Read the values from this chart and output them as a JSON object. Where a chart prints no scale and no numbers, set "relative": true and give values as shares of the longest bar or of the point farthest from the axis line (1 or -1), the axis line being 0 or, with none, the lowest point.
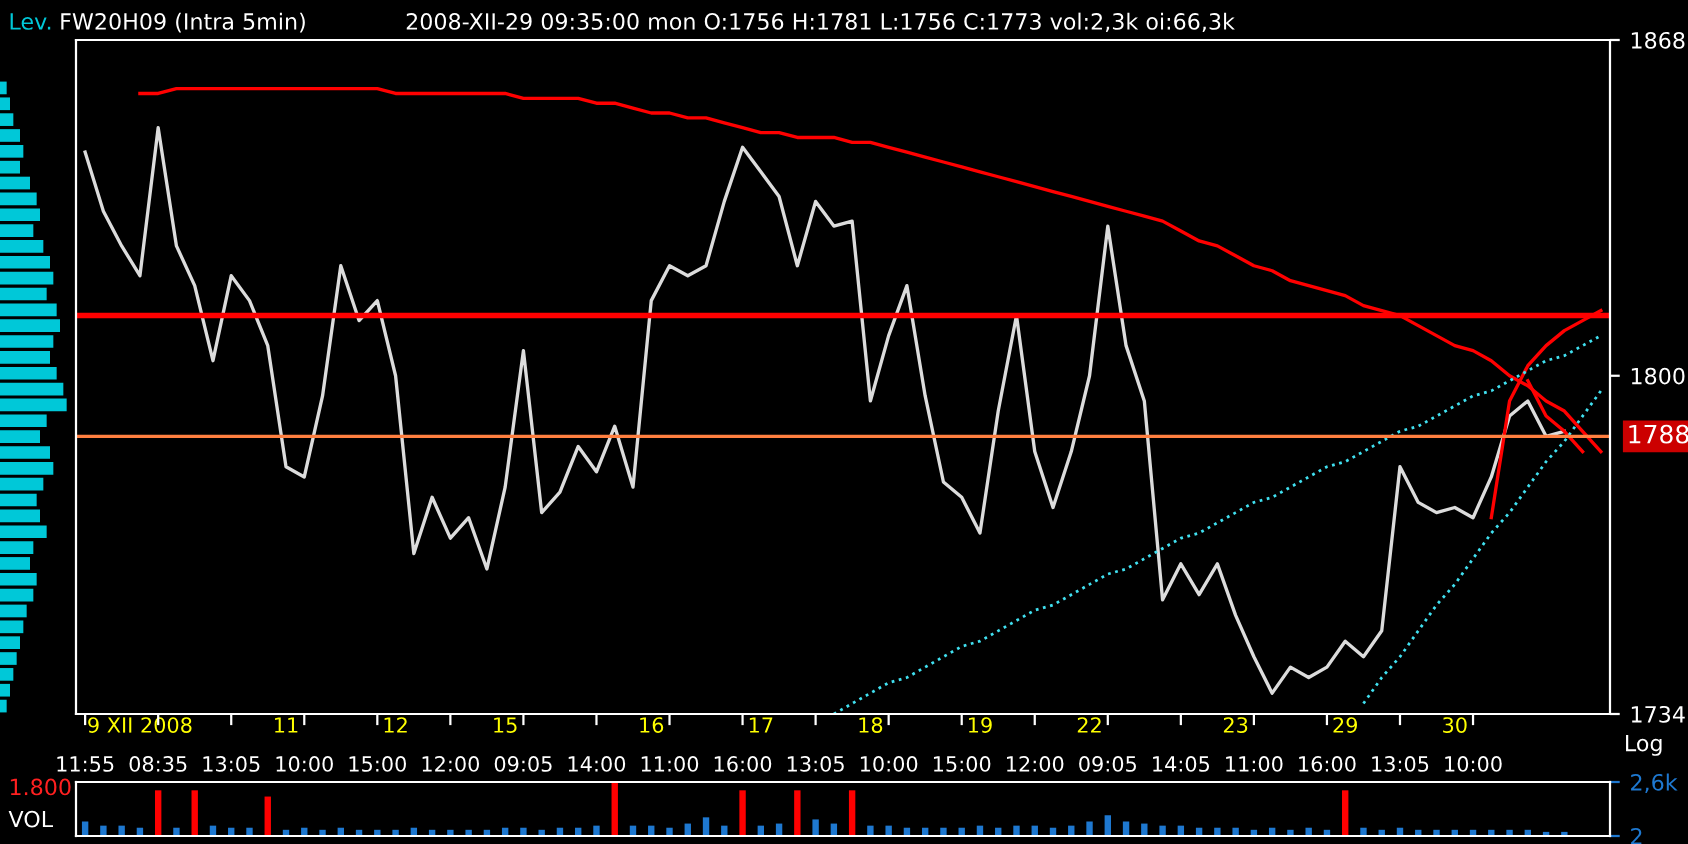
{
  "chart_data": [
    {
      "type": "bar",
      "title": "Lev.",
      "orientation": "horizontal",
      "relative": true,
      "color": "#00c8d8",
      "tick_labels": false,
      "categories": [
        null,
        null,
        null,
        null,
        null,
        null,
        null,
        null,
        null,
        null,
        null,
        null,
        null,
        null,
        null,
        null,
        null,
        null,
        null,
        null,
        null,
        null,
        null,
        null,
        null,
        null,
        null,
        null,
        null,
        null,
        null,
        null,
        null,
        null,
        null,
        null,
        null,
        null,
        null,
        null
      ],
      "values": [
        0.1,
        0.15,
        0.2,
        0.3,
        0.35,
        0.3,
        0.45,
        0.55,
        0.6,
        0.5,
        0.65,
        0.75,
        0.8,
        0.7,
        0.85,
        0.9,
        0.8,
        0.75,
        0.85,
        0.95,
        1,
        0.7,
        0.6,
        0.75,
        0.8,
        0.65,
        0.55,
        0.6,
        0.7,
        0.5,
        0.45,
        0.55,
        0.5,
        0.4,
        0.35,
        0.3,
        0.25,
        0.2,
        0.15,
        0.1
      ]
    },
    {
      "type": "line",
      "title": "FW20H09 (Intra 5min)",
      "subtitle": "2008-XII-29 09:35:00 mon O:1756 H:1781 L:1756 C:1773 vol:2,3k oi:66,3k",
      "log": "y",
      "ylim": [
        1734,
        1868
      ],
      "yticks": [
        1868,
        1800,
        1734
      ],
      "categories": [
        "11:55",
        null,
        null,
        "9 XII 2008",
        "08:35",
        null,
        null,
        null,
        "13:05",
        null,
        null,
        "11",
        "10:00",
        null,
        null,
        null,
        "15:00",
        "12",
        null,
        null,
        "12:00",
        null,
        null,
        "15",
        "09:05",
        null,
        null,
        null,
        "14:00",
        null,
        null,
        "16",
        "11:00",
        null,
        null,
        null,
        "16:00",
        "17",
        null,
        null,
        "13:05",
        null,
        null,
        "18",
        "10:00",
        null,
        null,
        null,
        "15:00",
        "19",
        null,
        null,
        "12:00",
        null,
        null,
        "22",
        "09:05",
        null,
        null,
        null,
        "14:05",
        null,
        null,
        "23",
        "11:00",
        null,
        null,
        null,
        "16:00",
        "29",
        null,
        null,
        "13:05",
        null,
        null,
        "30",
        "10:00",
        null,
        null,
        null,
        null,
        null,
        null,
        null
      ],
      "grid": false,
      "legend": false,
      "marker": "none",
      "annotations": [
        "Log"
      ],
      "ref_lines": [
        {
          "axis": "y",
          "value": 1812,
          "color": "#ff0000"
        },
        {
          "axis": "y",
          "value": 1788,
          "label": "1788",
          "color": "#ff7f40"
        }
      ],
      "series": [
        {
          "color": "#dcdcdc",
          "line_style": "solid",
          "values": [
            1845,
            1833,
            1826,
            1820,
            1850,
            1826,
            1818,
            1803,
            1820,
            1815,
            1806,
            1782,
            1780,
            1796,
            1822,
            1811,
            1815,
            1800,
            1765,
            1776,
            1768,
            1772,
            1762,
            1778,
            1805,
            1773,
            1777,
            1786,
            1781,
            1790,
            1778,
            1815,
            1822,
            1820,
            1822,
            1835,
            1846,
            1841,
            1836,
            1822,
            1835,
            1830,
            1831,
            1795,
            1808,
            1818,
            1796,
            1779,
            1776,
            1769,
            1793,
            1812,
            1785,
            1774,
            1785,
            1800,
            1830,
            1806,
            1795,
            1756,
            1763,
            1757,
            1763,
            1753,
            1745,
            1738,
            1743,
            1741,
            1743,
            1748,
            1745,
            1750,
            1782,
            1775,
            1773,
            1774,
            1772,
            1780,
            1792,
            1795,
            1788,
            1789,
            null,
            null
          ]
        },
        {
          "color": "#ff0000",
          "line_style": "solid",
          "values": [
            null,
            null,
            null,
            1857,
            1857,
            1858,
            1858,
            1858,
            1858,
            1858,
            1858,
            1858,
            1858,
            1858,
            1858,
            1858,
            1858,
            1857,
            1857,
            1857,
            1857,
            1857,
            1857,
            1857,
            1856,
            1856,
            1856,
            1856,
            1855,
            1855,
            1854,
            1853,
            1853,
            1852,
            1852,
            1851,
            1850,
            1849,
            1849,
            1848,
            1848,
            1848,
            1847,
            1847,
            1846,
            1845,
            1844,
            1843,
            1842,
            1841,
            1840,
            1839,
            1838,
            1837,
            1836,
            1835,
            1834,
            1833,
            1832,
            1831,
            1829,
            1827,
            1826,
            1824,
            1822,
            1821,
            1819,
            1818,
            1817,
            1816,
            1814,
            1813,
            1812,
            1810,
            1808,
            1806,
            1805,
            1803,
            1800,
            1798,
            1795,
            1793,
            1789,
            1785
          ]
        },
        {
          "color": "#ff0000",
          "line_style": "solid",
          "values": [
            null,
            null,
            null,
            null,
            null,
            null,
            null,
            null,
            null,
            null,
            null,
            null,
            null,
            null,
            null,
            null,
            null,
            null,
            null,
            null,
            null,
            null,
            null,
            null,
            null,
            null,
            null,
            null,
            null,
            null,
            null,
            null,
            null,
            null,
            null,
            null,
            null,
            null,
            null,
            null,
            null,
            null,
            null,
            null,
            null,
            null,
            null,
            null,
            null,
            null,
            null,
            null,
            null,
            null,
            null,
            null,
            null,
            null,
            null,
            null,
            null,
            null,
            null,
            null,
            null,
            null,
            null,
            null,
            null,
            null,
            null,
            null,
            null,
            null,
            null,
            null,
            null,
            1772,
            1795,
            1802,
            1806,
            1809,
            1811,
            1813
          ]
        },
        {
          "color": "#ff0000",
          "line_style": "solid",
          "values": [
            null,
            null,
            null,
            null,
            null,
            null,
            null,
            null,
            null,
            null,
            null,
            null,
            null,
            null,
            null,
            null,
            null,
            null,
            null,
            null,
            null,
            null,
            null,
            null,
            null,
            null,
            null,
            null,
            null,
            null,
            null,
            null,
            null,
            null,
            null,
            null,
            null,
            null,
            null,
            null,
            null,
            null,
            null,
            null,
            null,
            null,
            null,
            null,
            null,
            null,
            null,
            null,
            null,
            null,
            null,
            null,
            null,
            null,
            null,
            null,
            null,
            null,
            null,
            null,
            null,
            null,
            null,
            null,
            null,
            null,
            null,
            null,
            null,
            null,
            null,
            null,
            null,
            null,
            null,
            1799,
            1792,
            1789,
            1785,
            null
          ]
        },
        {
          "color": "#40e0f0",
          "line_style": "dotted",
          "values": [
            null,
            null,
            null,
            null,
            null,
            null,
            null,
            null,
            null,
            null,
            null,
            null,
            null,
            null,
            null,
            null,
            null,
            null,
            null,
            null,
            null,
            null,
            null,
            null,
            null,
            null,
            null,
            null,
            null,
            null,
            null,
            null,
            null,
            null,
            null,
            null,
            null,
            null,
            null,
            null,
            null,
            1734,
            1736,
            1738,
            1740,
            1741,
            1743,
            1745,
            1747,
            1748,
            1750,
            1752,
            1754,
            1755,
            1757,
            1759,
            1761,
            1762,
            1764,
            1766,
            1768,
            1769,
            1771,
            1773,
            1775,
            1776,
            1778,
            1780,
            1782,
            1783,
            1785,
            1787,
            1789,
            1790,
            1792,
            1794,
            1796,
            1797,
            1799,
            1801,
            1803,
            1804,
            1806,
            1808
          ]
        },
        {
          "color": "#40e0f0",
          "line_style": "dotted",
          "values": [
            null,
            null,
            null,
            null,
            null,
            null,
            null,
            null,
            null,
            null,
            null,
            null,
            null,
            null,
            null,
            null,
            null,
            null,
            null,
            null,
            null,
            null,
            null,
            null,
            null,
            null,
            null,
            null,
            null,
            null,
            null,
            null,
            null,
            null,
            null,
            null,
            null,
            null,
            null,
            null,
            null,
            null,
            null,
            null,
            null,
            null,
            null,
            null,
            null,
            null,
            null,
            null,
            null,
            null,
            null,
            null,
            null,
            null,
            null,
            null,
            null,
            null,
            null,
            null,
            null,
            null,
            null,
            null,
            null,
            null,
            1736,
            1741,
            1745,
            1750,
            1755,
            1759,
            1764,
            1769,
            1773,
            1778,
            1783,
            1787,
            1792,
            1797
          ]
        }
      ]
    },
    {
      "type": "bar",
      "title": "VOL",
      "ylim": [
        2,
        2600
      ],
      "yticks": [
        {
          "value": 2600,
          "label": "2,6k"
        },
        2
      ],
      "tick_labels": "y",
      "grid": false,
      "legend": false,
      "annotations": [
        "1.800"
      ],
      "categories": [
        null,
        null,
        null,
        null,
        null,
        null,
        null,
        null,
        null,
        null,
        null,
        null,
        null,
        null,
        null,
        null,
        null,
        null,
        null,
        null,
        null,
        null,
        null,
        null,
        null,
        null,
        null,
        null,
        null,
        null,
        null,
        null,
        null,
        null,
        null,
        null,
        null,
        null,
        null,
        null,
        null,
        null,
        null,
        null,
        null,
        null,
        null,
        null,
        null,
        null,
        null,
        null,
        null,
        null,
        null,
        null,
        null,
        null,
        null,
        null,
        null,
        null,
        null,
        null,
        null,
        null,
        null,
        null,
        null,
        null,
        null,
        null,
        null,
        null,
        null,
        null,
        null,
        null,
        null,
        null,
        null,
        null,
        null,
        null
      ],
      "series": [
        {
          "color": "#1e78d0",
          "values": [
            700,
            500,
            500,
            400,
            null,
            400,
            null,
            500,
            400,
            400,
            null,
            300,
            400,
            300,
            400,
            300,
            300,
            300,
            400,
            300,
            300,
            300,
            300,
            400,
            400,
            300,
            400,
            400,
            500,
            null,
            500,
            500,
            400,
            600,
            900,
            500,
            null,
            500,
            600,
            null,
            800,
            600,
            null,
            500,
            500,
            400,
            400,
            400,
            400,
            500,
            400,
            500,
            500,
            400,
            500,
            700,
            1000,
            700,
            600,
            500,
            500,
            400,
            400,
            400,
            300,
            400,
            300,
            400,
            300,
            null,
            400,
            300,
            400,
            300,
            300,
            300,
            300,
            300,
            300,
            300,
            200,
            200,
            null,
            null
          ]
        },
        {
          "color": "#ff0000",
          "values": [
            null,
            null,
            null,
            null,
            2200,
            null,
            2200,
            null,
            null,
            null,
            1900,
            null,
            null,
            null,
            null,
            null,
            null,
            null,
            null,
            null,
            null,
            null,
            null,
            null,
            null,
            null,
            null,
            null,
            null,
            2600,
            null,
            null,
            null,
            null,
            null,
            null,
            2200,
            null,
            null,
            2200,
            null,
            null,
            2200,
            null,
            null,
            null,
            null,
            null,
            null,
            null,
            null,
            null,
            null,
            null,
            null,
            null,
            null,
            null,
            null,
            null,
            null,
            null,
            null,
            null,
            null,
            null,
            null,
            null,
            null,
            2200,
            null,
            null,
            null,
            null,
            null,
            null,
            null,
            null,
            null,
            null,
            null,
            null,
            null,
            null
          ]
        }
      ]
    }
  ]
}
